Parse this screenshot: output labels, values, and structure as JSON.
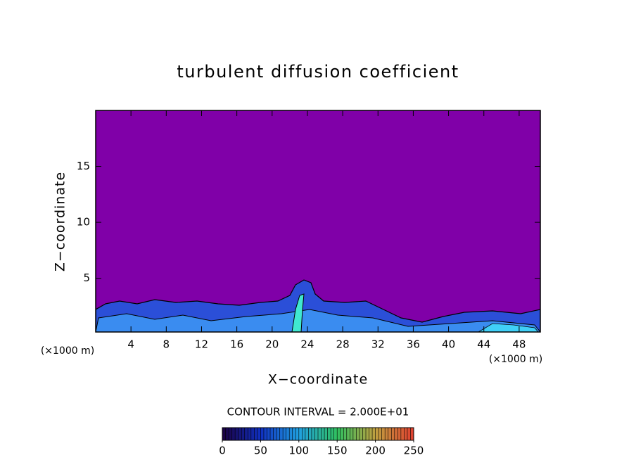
{
  "chart_data": {
    "type": "contour",
    "title": "turbulent diffusion coefficient",
    "xlabel": "X−coordinate",
    "ylabel": "Z−coordinate",
    "x_unit_label": "(×1000 m)",
    "y_unit_label": "(×1000 m)",
    "xlim": [
      0,
      50.4
    ],
    "xticks": [
      4,
      8,
      12,
      16,
      20,
      24,
      28,
      32,
      36,
      40,
      44,
      48
    ],
    "ylim": [
      0.2,
      20
    ],
    "yticks": [
      5,
      10,
      15
    ],
    "field_color": "#8000a8",
    "contour_interval_label": "CONTOUR INTERVAL = 2.000E+01",
    "colorbar": {
      "lim": [
        0,
        250
      ],
      "ticks": [
        0,
        50,
        100,
        150,
        200,
        250
      ],
      "colors": [
        "#1a0040",
        "#1030c0",
        "#20a0e0",
        "#30c060",
        "#c0a040",
        "#e04030"
      ]
    }
  }
}
